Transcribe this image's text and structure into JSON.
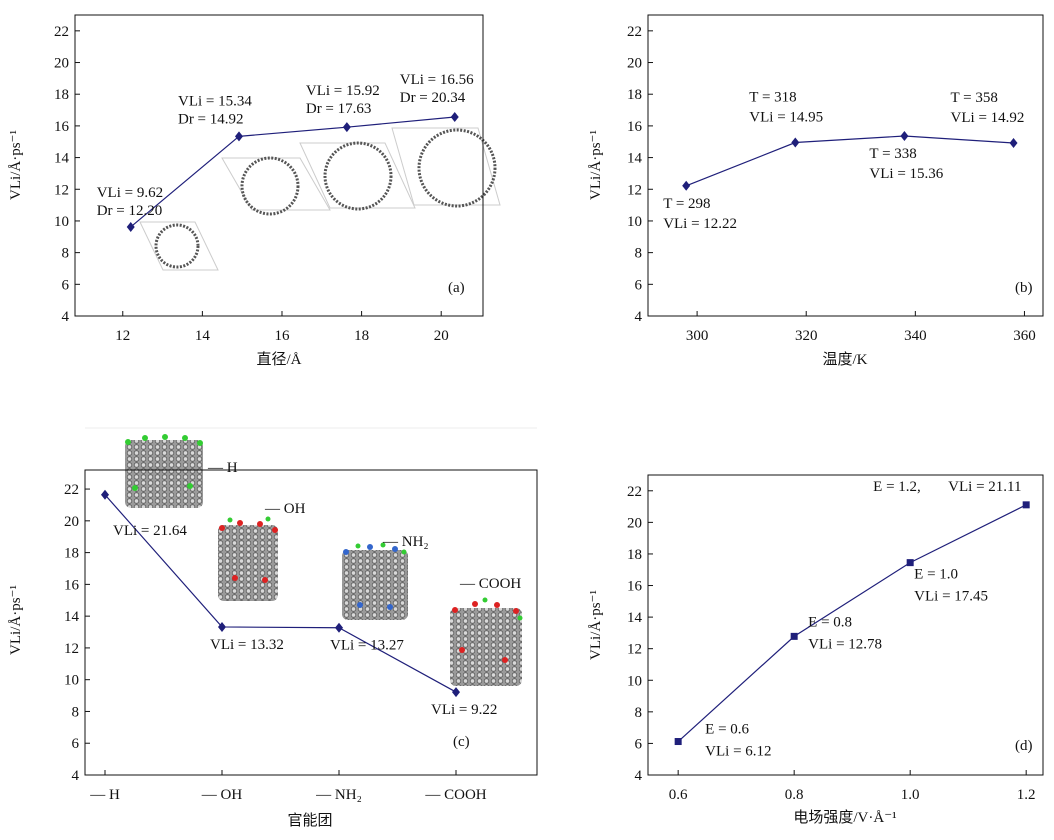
{
  "chart_data": [
    {
      "type": "line",
      "panel_label": "(a)",
      "x_label": "直径/Å",
      "y_label": "VLi/Å·ps⁻¹",
      "x": [
        12.2,
        14.92,
        17.63,
        20.34
      ],
      "x_labels": [
        "Dr = 12.20",
        "Dr = 14.92",
        "Dr = 17.63",
        "Dr = 20.34"
      ],
      "series": [
        {
          "color": "#1f1f7a",
          "marker": "diamond",
          "values": [
            9.62,
            15.34,
            15.92,
            16.56
          ],
          "value_labels": [
            "VLi = 9.62",
            "VLi = 15.34",
            "VLi = 15.92",
            "VLi = 16.56"
          ]
        }
      ],
      "xlim": [
        10.8,
        21.05
      ],
      "xticks": [
        12,
        14,
        16,
        18,
        20
      ],
      "ylim": [
        4,
        23
      ],
      "yticks": [
        4,
        6,
        8,
        10,
        12,
        14,
        16,
        18,
        20,
        22
      ]
    },
    {
      "type": "line",
      "panel_label": "(b)",
      "x_label": "温度/K",
      "y_label": "VLi/Å·ps⁻¹",
      "x": [
        298,
        318,
        338,
        358
      ],
      "x_labels": [
        "T = 298",
        "T = 318",
        "T = 338",
        "T = 358"
      ],
      "series": [
        {
          "color": "#1f1f7a",
          "marker": "diamond",
          "values": [
            12.22,
            14.95,
            15.36,
            14.92
          ],
          "value_labels": [
            "VLi = 12.22",
            "VLi = 14.95",
            "VLi = 15.36",
            "VLi = 14.92"
          ]
        }
      ],
      "xlim": [
        291,
        363.4
      ],
      "xticks": [
        300,
        320,
        340,
        360
      ],
      "ylim": [
        4,
        23
      ],
      "yticks": [
        4,
        6,
        8,
        10,
        12,
        14,
        16,
        18,
        20,
        22
      ]
    },
    {
      "type": "line",
      "panel_label": "(c)",
      "x_label": "官能团",
      "y_label": "VLi/Å·ps⁻¹",
      "categories": [
        "— H",
        "— OH",
        "— NH₂",
        "— COOH"
      ],
      "series": [
        {
          "color": "#1f1f7a",
          "marker": "diamond",
          "values": [
            21.64,
            13.32,
            13.27,
            9.22
          ],
          "value_labels": [
            "VLi = 21.64",
            "VLi = 13.32",
            "VLi = 13.27",
            "VLi = 9.22"
          ]
        }
      ],
      "ylim": [
        4,
        23.2
      ],
      "yticks": [
        4,
        6,
        8,
        10,
        12,
        14,
        16,
        18,
        20,
        22
      ]
    },
    {
      "type": "line",
      "panel_label": "(d)",
      "x_label": "电场强度/V·Å⁻¹",
      "y_label": "VLi/Å·ps⁻¹",
      "x": [
        0.6,
        0.8,
        1.0,
        1.2
      ],
      "x_labels": [
        "E = 0.6",
        "E = 0.8",
        "E = 1.0",
        "E = 1.2,"
      ],
      "series": [
        {
          "color": "#1f1f7a",
          "marker": "square",
          "values": [
            6.12,
            12.78,
            17.45,
            21.11
          ],
          "value_labels": [
            "VLi = 6.12",
            "VLi = 12.78",
            "VLi = 17.45",
            "VLi = 21.11"
          ]
        }
      ],
      "xlim": [
        0.548,
        1.229
      ],
      "xticks": [
        0.6,
        0.8,
        {
          "value": 1,
          "label": "1.0"
        },
        1.2
      ],
      "ylim": [
        4,
        23
      ],
      "yticks": [
        4,
        6,
        8,
        10,
        12,
        14,
        16,
        18,
        20,
        22
      ]
    }
  ]
}
